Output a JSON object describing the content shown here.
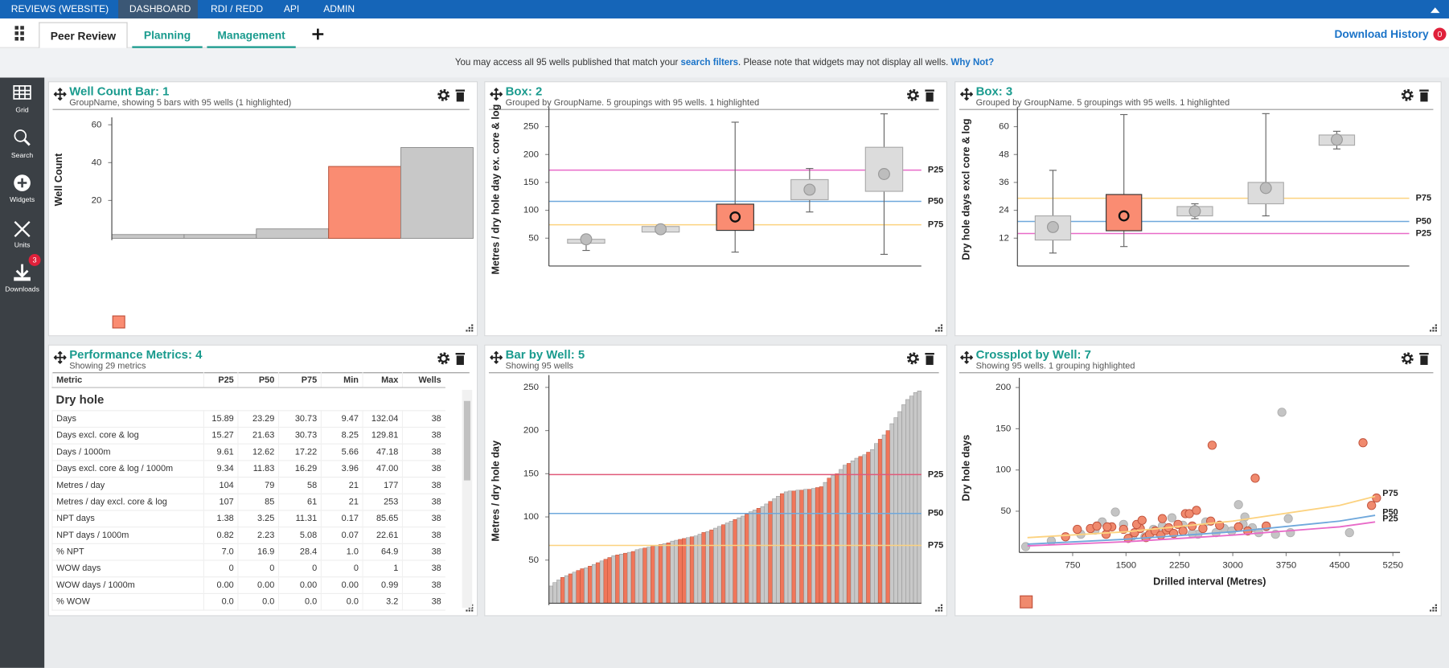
{
  "top_nav": {
    "tabs": [
      "REVIEWS (WEBSITE)",
      "DASHBOARD",
      "RDI / REDD",
      "API",
      "ADMIN"
    ],
    "active": 1
  },
  "sub_nav": {
    "tabs": [
      "Peer Review",
      "Planning",
      "Management"
    ],
    "active": 0,
    "download_history": "Download History",
    "download_badge": 0
  },
  "notice": {
    "text_1": "You may access all 95 wells published that match your",
    "link_1": "search filters",
    "text_2": ". Please note that widgets may not display all wells.",
    "link_2": "Why Not?"
  },
  "sidebar": [
    {
      "label": "Grid"
    },
    {
      "label": "Search"
    },
    {
      "label": "Widgets"
    },
    {
      "label": "Units"
    },
    {
      "label": "Downloads",
      "badge": 3
    }
  ],
  "widgets": [
    {
      "title": "Well Count Bar: 1",
      "subtitle": "GroupName, showing 5 bars with 95 wells (1 highlighted)",
      "chart_data": {
        "type": "bar",
        "ylabel": "Well Count",
        "categories": [
          null,
          null,
          null,
          null,
          null
        ],
        "values": [
          2,
          2,
          5,
          38,
          48
        ],
        "color": "#c8c8c8",
        "highlight_color": "#fa8c72",
        "highlighted": [
          3
        ],
        "ylim": [
          0,
          62
        ],
        "yticks": [
          20,
          40,
          60
        ],
        "legend": "bottom-left"
      }
    },
    {
      "title": "Box: 2",
      "subtitle": "Grouped by GroupName. 5 groupings with 95 wells. 1 highlighted",
      "chart_data": {
        "type": "box",
        "ylabel": "Metres / dry hole day ex. core & log",
        "color": "#dcdcdc",
        "highlight_color": "#fa8c72",
        "highlighted": [
          2
        ],
        "groups": [
          {
            "low": 28,
            "q1": 41,
            "q3": 48,
            "high": 56,
            "mean": 48
          },
          {
            "low": 60,
            "q1": 61,
            "q3": 71,
            "high": 72,
            "mean": 66
          },
          {
            "low": 25,
            "q1": 64,
            "q3": 111,
            "high": 258,
            "mean": 88
          },
          {
            "low": 97,
            "q1": 119,
            "q3": 155,
            "high": 175,
            "mean": 137
          },
          {
            "low": 21,
            "q1": 134,
            "q3": 213,
            "high": 273,
            "mean": 165
          }
        ],
        "ylim": [
          0,
          275
        ],
        "yticks": [
          50,
          100,
          150,
          200,
          250
        ],
        "reference_lines": [
          {
            "name": "P25",
            "value": 172,
            "color": "#e86ac8"
          },
          {
            "name": "P50",
            "value": 116,
            "color": "#6fa8dc"
          },
          {
            "name": "P75",
            "value": 74,
            "color": "#fcd27f"
          }
        ]
      }
    },
    {
      "title": "Box: 3",
      "subtitle": "Grouped by GroupName. 5 groupings with 95 wells. 1 highlighted",
      "chart_data": {
        "type": "box",
        "ylabel": "Dry hole days excl core & log",
        "color": "#dcdcdc",
        "highlight_color": "#fa8c72",
        "highlighted": [
          1
        ],
        "groups": [
          {
            "low": 5.6,
            "q1": 11.2,
            "q3": 21.6,
            "high": 41.2,
            "mean": 16.8
          },
          {
            "low": 8.4,
            "q1": 15.2,
            "q3": 30.8,
            "high": 65.2,
            "mean": 21.6
          },
          {
            "low": 20.4,
            "q1": 21.6,
            "q3": 25.6,
            "high": 26.8,
            "mean": 23.6
          },
          {
            "low": 21.6,
            "q1": 26.8,
            "q3": 36,
            "high": 65.6,
            "mean": 33.6
          },
          {
            "low": 50.4,
            "q1": 52,
            "q3": 56.4,
            "high": 58,
            "mean": 54.4
          }
        ],
        "ylim": [
          0,
          66
        ],
        "yticks": [
          12,
          24,
          36,
          48,
          60
        ],
        "reference_lines": [
          {
            "name": "P75",
            "value": 29.2,
            "color": "#fcd27f"
          },
          {
            "name": "P50",
            "value": 19.2,
            "color": "#6fa8dc"
          },
          {
            "name": "P25",
            "value": 14,
            "color": "#e86ac8"
          }
        ]
      }
    },
    {
      "title": "Performance Metrics: 4",
      "subtitle": "Showing 29 metrics",
      "table": {
        "columns": [
          "Metric",
          "P25",
          "P50",
          "P75",
          "Min",
          "Max",
          "Wells"
        ],
        "section": "Dry hole",
        "rows": [
          [
            "Days",
            "15.89",
            "23.29",
            "30.73",
            "9.47",
            "132.04",
            "38"
          ],
          [
            "Days excl. core & log",
            "15.27",
            "21.63",
            "30.73",
            "8.25",
            "129.81",
            "38"
          ],
          [
            "Days / 1000m",
            "9.61",
            "12.62",
            "17.22",
            "5.66",
            "47.18",
            "38"
          ],
          [
            "Days excl. core & log / 1000m",
            "9.34",
            "11.83",
            "16.29",
            "3.96",
            "47.00",
            "38"
          ],
          [
            "Metres / day",
            "104",
            "79",
            "58",
            "21",
            "177",
            "38"
          ],
          [
            "Metres / day excl. core & log",
            "107",
            "85",
            "61",
            "21",
            "253",
            "38"
          ],
          [
            "NPT days",
            "1.38",
            "3.25",
            "11.31",
            "0.17",
            "85.65",
            "38"
          ],
          [
            "NPT days / 1000m",
            "0.82",
            "2.23",
            "5.08",
            "0.07",
            "22.61",
            "38"
          ],
          [
            "% NPT",
            "7.0",
            "16.9",
            "28.4",
            "1.0",
            "64.9",
            "38"
          ],
          [
            "WOW days",
            "0",
            "0",
            "0",
            "0",
            "1",
            "38"
          ],
          [
            "WOW days / 1000m",
            "0.00",
            "0.00",
            "0.00",
            "0.00",
            "0.99",
            "38"
          ],
          [
            "% WOW",
            "0.0",
            "0.0",
            "0.0",
            "0.0",
            "3.2",
            "38"
          ]
        ]
      }
    },
    {
      "title": "Bar by Well: 5",
      "subtitle": "Showing 95 wells",
      "chart_data": {
        "type": "bar",
        "ylabel": "Metres / dry hole day",
        "color": "#c8c8c8",
        "highlight_color": "#f0765a",
        "values": [
          20,
          24,
          27,
          30,
          32,
          34,
          36,
          38,
          40,
          41,
          43,
          45,
          47,
          49,
          51,
          53,
          55,
          56,
          57,
          58,
          59,
          60,
          62,
          63,
          64,
          65,
          66,
          67,
          68,
          69,
          70,
          72,
          73,
          74,
          75,
          76,
          77,
          78,
          80,
          82,
          83,
          85,
          87,
          89,
          91,
          93,
          95,
          97,
          99,
          101,
          103,
          106,
          108,
          110,
          112,
          115,
          118,
          121,
          124,
          127,
          129,
          130,
          130,
          131,
          131,
          132,
          132,
          133,
          134,
          135,
          140,
          145,
          148,
          150,
          155,
          160,
          162,
          165,
          168,
          170,
          172,
          175,
          178,
          185,
          190,
          195,
          200,
          208,
          215,
          222,
          230,
          236,
          240,
          244,
          246
        ],
        "highlighted": [
          3,
          5,
          7,
          8,
          10,
          12,
          14,
          15,
          17,
          19,
          21,
          24,
          26,
          28,
          30,
          33,
          34,
          36,
          39,
          41,
          44,
          47,
          50,
          53,
          56,
          59,
          62,
          64,
          66,
          68,
          69,
          71,
          73,
          76,
          79,
          81,
          84,
          86
        ],
        "ylim": [
          0,
          260
        ],
        "yticks": [
          50,
          100,
          150,
          200,
          250
        ],
        "reference_lines": [
          {
            "name": "P25",
            "value": 149,
            "color": "#e05a7a"
          },
          {
            "name": "P50",
            "value": 104,
            "color": "#6fa8dc"
          },
          {
            "name": "P75",
            "value": 67,
            "color": "#fcd27f"
          }
        ]
      }
    },
    {
      "title": "Crossplot by Well: 7",
      "subtitle": "Showing 95 wells. 1 grouping highlighted",
      "chart_data": {
        "type": "scatter",
        "xlabel": "Drilled interval (Metres)",
        "ylabel": "Dry hole days",
        "legend": "bottom-left",
        "series": [
          {
            "color": "#c4c4c4",
            "x": [
              90,
              450,
              865,
              1165,
              1350,
              1465,
              1595,
              1885,
              2145,
              2300,
              2510,
              2620,
              2765,
              2880,
              2985,
              3080,
              3170,
              3275,
              3365,
              3470,
              3600,
              3690,
              3780,
              3810,
              4640,
              3145,
              2010,
              1065,
              1765,
              2430
            ],
            "y": [
              7,
              14,
              22,
              37,
              49,
              34,
              20,
              28,
              42,
              33,
              22,
              37,
              24,
              29,
              26,
              58,
              43,
              30,
              24,
              31,
              22,
              170,
              41,
              24,
              24,
              34,
              32,
              27,
              19,
              23
            ]
          },
          {
            "color": "#f08a6e",
            "x": [
              650,
              815,
              1000,
              1090,
              1220,
              1300,
              1465,
              1530,
              1620,
              1700,
              1780,
              1830,
              1910,
              1990,
              2070,
              2100,
              2170,
              2230,
              2300,
              2335,
              2390,
              2490,
              2580,
              2710,
              2815,
              3080,
              3210,
              3315,
              3470,
              4950,
              4830,
              5020,
              1650,
              2010,
              2430,
              2690,
              1235,
              1725
            ],
            "y": [
              19,
              28,
              29,
              32,
              22,
              31,
              28,
              17,
              24,
              29,
              18,
              22,
              26,
              21,
              27,
              30,
              23,
              34,
              26,
              47,
              47,
              51,
              29,
              130,
              33,
              31,
              26,
              90,
              32,
              57,
              133,
              66,
              34,
              41,
              32,
              38,
              31,
              39
            ]
          }
        ],
        "reference_curves": [
          {
            "name": "P75",
            "color": "#fcd27f",
            "x": [
              115,
              1500,
              3000,
              4500,
              5000
            ],
            "y": [
              18,
              25,
              38,
              57,
              68
            ]
          },
          {
            "name": "P50",
            "color": "#6fa8dc",
            "x": [
              115,
              1500,
              3000,
              4500,
              5000
            ],
            "y": [
              10,
              16,
              25,
              38,
              45
            ]
          },
          {
            "name": "P25",
            "color": "#e86ac8",
            "x": [
              115,
              1500,
              3000,
              4500,
              5000
            ],
            "y": [
              8,
              13,
              21,
              31,
              37
            ]
          }
        ],
        "xlim": [
          0,
          5350
        ],
        "xticks": [
          750,
          1500,
          2250,
          3000,
          3750,
          4500,
          5250
        ],
        "ylim": [
          0,
          205
        ],
        "yticks": [
          50,
          100,
          150,
          200
        ]
      }
    }
  ]
}
